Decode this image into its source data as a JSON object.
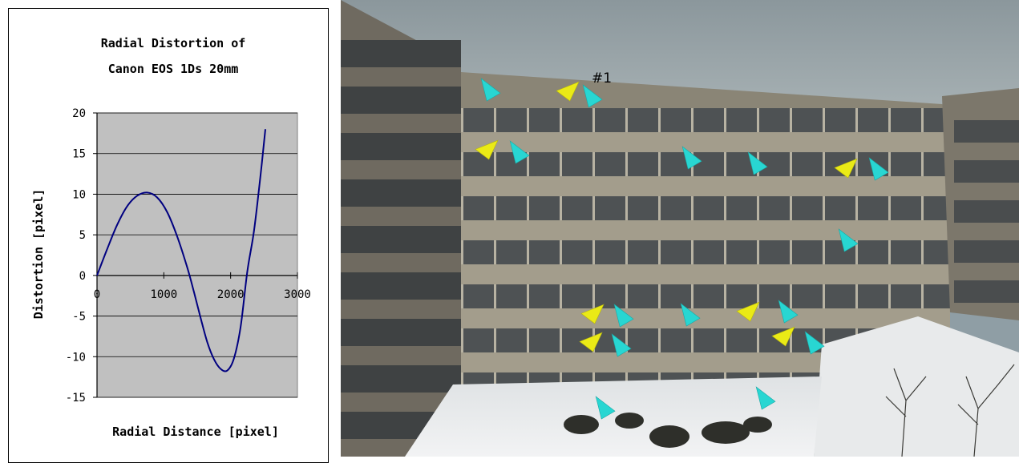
{
  "chart_data": {
    "type": "line",
    "title_lines": [
      "Radial Distortion of",
      "Canon EOS 1Ds 20mm"
    ],
    "xlabel": "Radial Distance [pixel]",
    "ylabel": "Distortion [pixel]",
    "xlim": [
      0,
      3000
    ],
    "ylim": [
      -15,
      20
    ],
    "x_ticks": [
      0,
      1000,
      2000,
      3000
    ],
    "y_ticks": [
      20,
      15,
      10,
      5,
      0,
      -5,
      -10,
      -15
    ],
    "grid": "horizontal",
    "plot_background": "#c0c0c0",
    "line_color": "#000080",
    "series": [
      {
        "x": [
          0,
          150,
          300,
          450,
          600,
          750,
          900,
          1050,
          1200,
          1350,
          1450,
          1550,
          1650,
          1750,
          1850,
          1950,
          2050,
          2150,
          2250,
          2350,
          2450,
          2520
        ],
        "y": [
          0,
          3.2,
          6.2,
          8.5,
          9.8,
          10.2,
          9.6,
          7.8,
          4.8,
          1.0,
          -2.0,
          -5.2,
          -8.2,
          -10.3,
          -11.5,
          -11.7,
          -10.2,
          -6.3,
          0.5,
          5.5,
          12.5,
          18.0
        ]
      }
    ]
  },
  "photo": {
    "annotation_label": "#1",
    "marker_colors": {
      "cyan": "#28d6d2",
      "yellow": "#eaea16"
    }
  }
}
